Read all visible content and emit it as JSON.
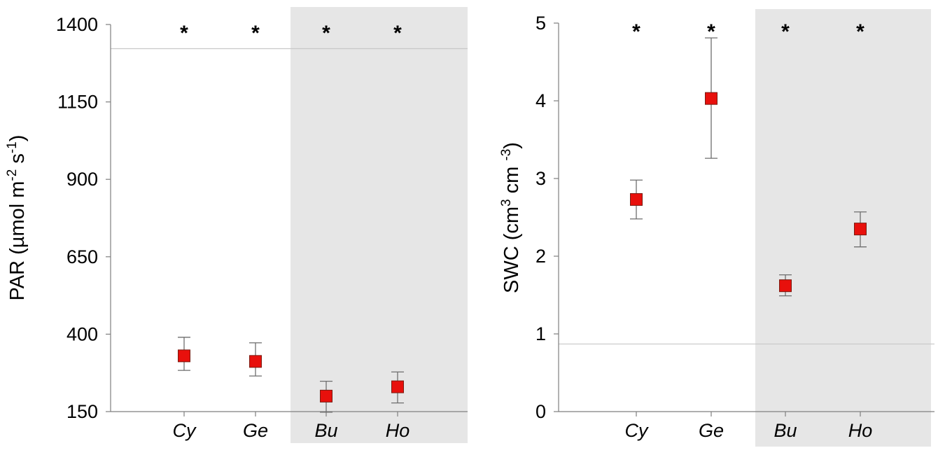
{
  "chart_data": [
    {
      "type": "scatter",
      "title": "",
      "xlabel": "",
      "ylabel": "PAR (µmol m⁻² s⁻¹)",
      "ylabel_parts": {
        "base": "PAR (µmol m",
        "exp1": "-2",
        "mid": " s",
        "exp2": "-1",
        "end": ")"
      },
      "ylim": [
        150,
        1400
      ],
      "yticks": [
        150,
        400,
        650,
        900,
        1150,
        1400
      ],
      "categories": [
        "Cy",
        "Ge",
        "Bu",
        "Ho"
      ],
      "shaded_categories": [
        "Bu",
        "Ho"
      ],
      "series": [
        {
          "values": [
            330,
            312,
            200,
            230
          ],
          "err_upper": [
            390,
            372,
            248,
            278
          ],
          "err_lower": [
            283,
            265,
            148,
            178
          ]
        }
      ],
      "reference_line": 1322,
      "annotations": [
        "*",
        "*",
        "*",
        "*"
      ],
      "marker_color": "#e8100c",
      "shade_color": "#e6e6e6"
    },
    {
      "type": "scatter",
      "title": "",
      "xlabel": "",
      "ylabel": "SWC (cm³ cm⁻³)",
      "ylabel_parts": {
        "base": "SWC (cm",
        "exp1": "3",
        "mid": " cm ",
        "exp2": "-3",
        "end": ")"
      },
      "ylim": [
        0,
        5
      ],
      "yticks": [
        0,
        1,
        2,
        3,
        4,
        5
      ],
      "categories": [
        "Cy",
        "Ge",
        "Bu",
        "Ho"
      ],
      "shaded_categories": [
        "Bu",
        "Ho"
      ],
      "series": [
        {
          "values": [
            2.73,
            4.03,
            1.62,
            2.35
          ],
          "err_upper": [
            2.98,
            4.81,
            1.76,
            2.57
          ],
          "err_lower": [
            2.48,
            3.26,
            1.49,
            2.12
          ]
        }
      ],
      "reference_line": 0.87,
      "annotations": [
        "*",
        "*",
        "*",
        "*"
      ],
      "marker_color": "#e8100c",
      "shade_color": "#e6e6e6"
    }
  ]
}
